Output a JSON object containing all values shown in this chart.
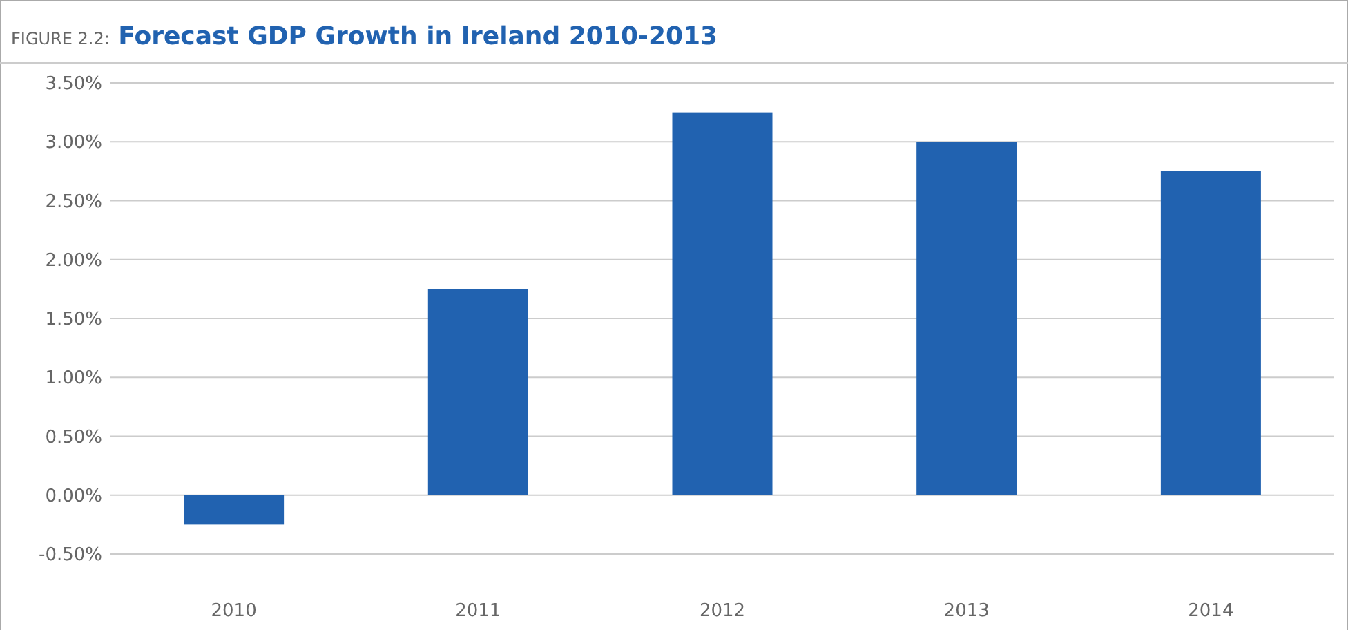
{
  "chart_data": {
    "type": "bar",
    "title": "FIGURE 2.2: Forecast GDP Growth in Ireland 2010-2013",
    "categories": [
      "2010",
      "2011",
      "2012",
      "2013",
      "2014"
    ],
    "values": [
      -0.25,
      1.75,
      3.25,
      3.0,
      2.75
    ],
    "color": "#2162b0",
    "ylim": [
      -0.5,
      3.5
    ],
    "yticks": [
      {
        "value": -0.5,
        "label": "-0.50%"
      },
      {
        "value": 0,
        "label": "0.00%"
      },
      {
        "value": 0.5,
        "label": "0.50%"
      },
      {
        "value": 1,
        "label": "1.00%"
      },
      {
        "value": 1.5,
        "label": "1.50%"
      },
      {
        "value": 2,
        "label": "2.00%"
      },
      {
        "value": 2.5,
        "label": "2.50%"
      },
      {
        "value": 3,
        "label": "3.00%"
      },
      {
        "value": 3.5,
        "label": "3.50%"
      }
    ],
    "grid": true
  }
}
